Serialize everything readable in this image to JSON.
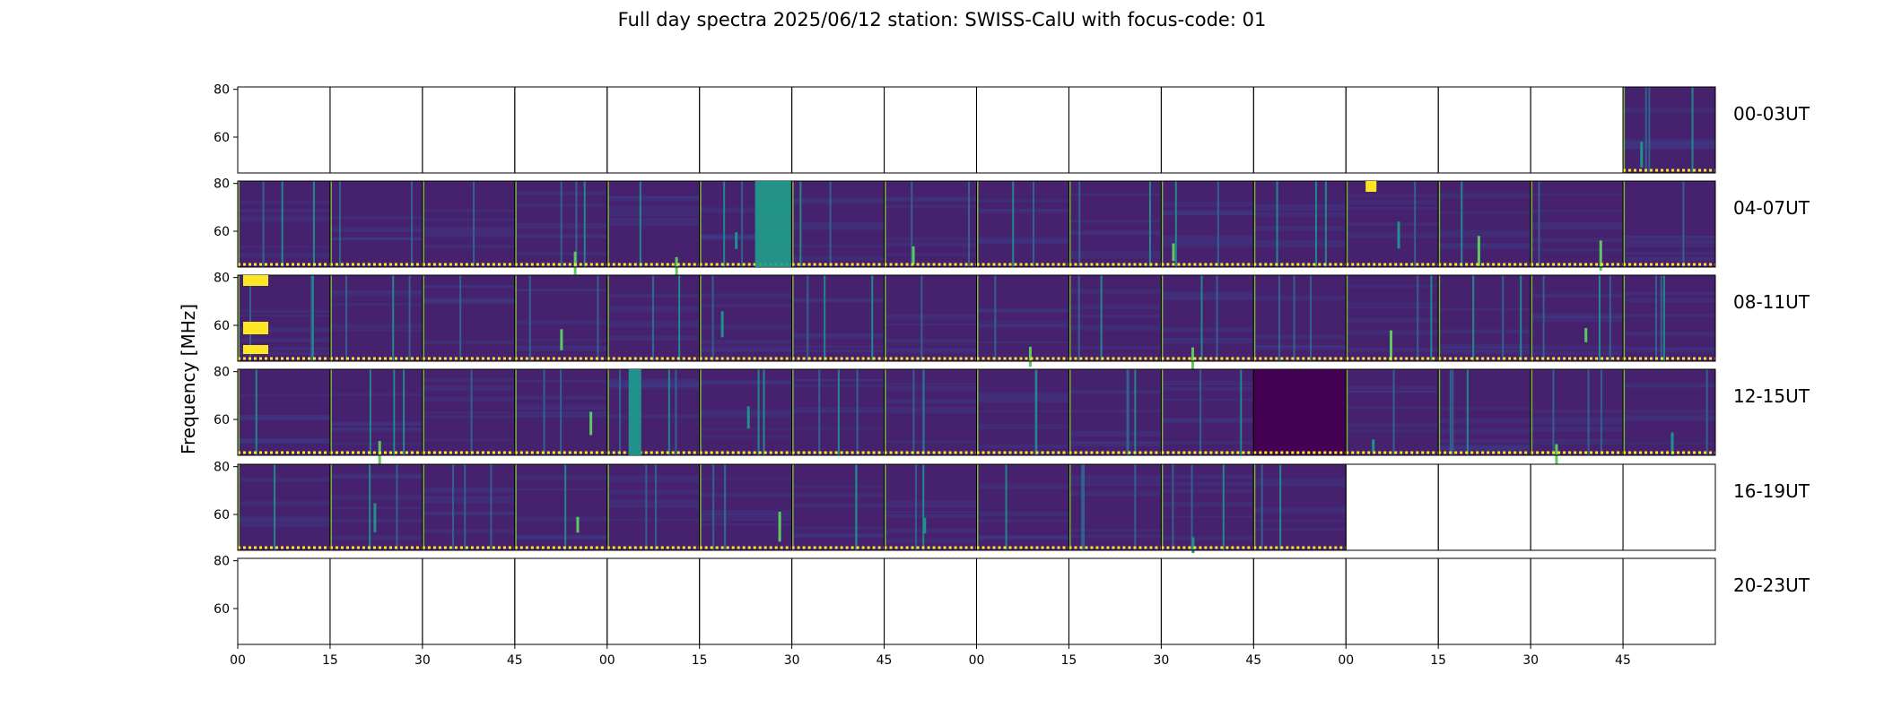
{
  "title": "Full day spectra 2025/06/12 station: SWISS-CalU with focus-code: 01",
  "chart_data": {
    "type": "heatmap",
    "title": "Full day spectra 2025/06/12 station: SWISS-CalU with focus-code: 01",
    "ylabel": "Frequency [MHz]",
    "xlabel": "",
    "ylim": [
      45,
      81
    ],
    "y_ticks": [
      "60",
      "80"
    ],
    "x_ticks": [
      "00",
      "15",
      "30",
      "45",
      "00",
      "15",
      "30",
      "45",
      "00",
      "15",
      "30",
      "45",
      "00",
      "15",
      "30",
      "45"
    ],
    "row_labels": [
      "00-03UT",
      "04-07UT",
      "08-11UT",
      "12-15UT",
      "16-19UT",
      "20-23UT"
    ],
    "panels_per_row": 16,
    "colormap": [
      "#440154",
      "#3b528b",
      "#21918c",
      "#5ec962",
      "#fde725"
    ],
    "row_filled_ranges": [
      [
        15,
        15
      ],
      [
        0,
        15
      ],
      [
        0,
        15
      ],
      [
        0,
        15
      ],
      [
        0,
        11
      ],
      []
    ],
    "dark_panels": [
      {
        "row": 3,
        "panel": 11
      }
    ]
  }
}
